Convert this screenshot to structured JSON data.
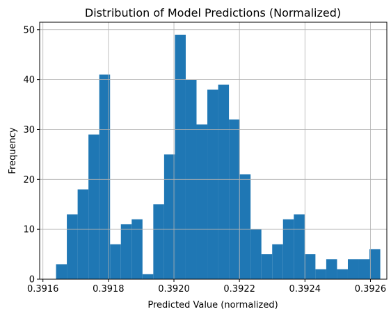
{
  "chart_data": {
    "type": "bar",
    "subtype": "histogram",
    "title": "Distribution of Model Predictions (Normalized)",
    "xlabel": "Predicted Value (normalized)",
    "ylabel": "Frequency",
    "xlim": [
      0.39159,
      0.39265
    ],
    "ylim": [
      0,
      51.5
    ],
    "x_ticks": [
      "0.3916",
      "0.3918",
      "0.3920",
      "0.3922",
      "0.3924",
      "0.3926"
    ],
    "y_ticks": [
      "0",
      "10",
      "20",
      "30",
      "40",
      "50"
    ],
    "grid": true,
    "legend": "none",
    "bar_color": "#1f77b4",
    "bin_start": 0.39164,
    "bin_width": 3.3e-05,
    "values": [
      3,
      13,
      18,
      29,
      41,
      7,
      11,
      12,
      1,
      15,
      25,
      49,
      40,
      31,
      38,
      39,
      32,
      21,
      10,
      5,
      7,
      12,
      13,
      5,
      2,
      4,
      2,
      4,
      4,
      6
    ]
  }
}
